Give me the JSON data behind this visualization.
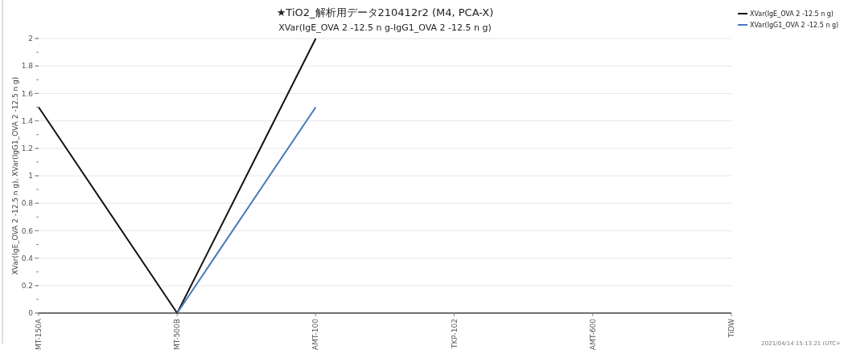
{
  "chart_data": {
    "type": "line",
    "title": "★TiO2_解析用データ210412r2 (M4, PCA-X)",
    "subtitle": "XVar(IgE_OVA 2 -12.5 n g-IgG1_OVA 2 -12.5 n g)",
    "ylabel": "XVar(IgE_OVA 2 -12.5 n g), XVar(IgG1_OVA 2 -12.5 n g)",
    "annotations": [
      "2021/04/14 15:13:21 (UTC+"
    ],
    "categories": [
      "MT-150A",
      "MT-500B",
      "AMT-100",
      "TKP-102",
      "AMT-600",
      "TiDW"
    ],
    "series": [
      {
        "name": "XVar(IgE_OVA 2 -12.5 n g)",
        "color": "#111111",
        "values": [
          1.5,
          0,
          2,
          null,
          null,
          null
        ]
      },
      {
        "name": "XVar(IgG1_OVA 2 -12.5 n g)",
        "color": "#4a78b8",
        "values": [
          null,
          0,
          1.5,
          null,
          null,
          null
        ]
      }
    ],
    "ylim": [
      0,
      2
    ],
    "yticks": [
      0,
      0.2,
      0.4,
      0.6,
      0.8,
      1,
      1.2,
      1.4,
      1.6,
      1.8,
      2
    ],
    "grid": "y",
    "legend": "top right",
    "marker": "none",
    "line_style": "solid"
  }
}
